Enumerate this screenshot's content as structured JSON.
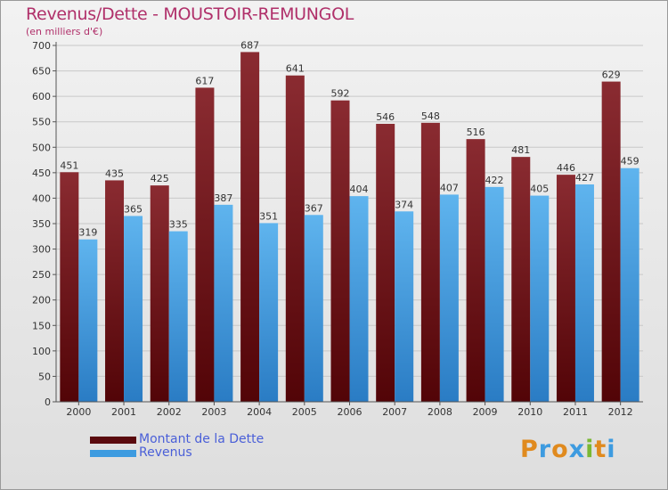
{
  "title": "Revenus/Dette - MOUSTOIR-REMUNGOL",
  "subtitle": "(en milliers d'€)",
  "chart_data": {
    "type": "bar",
    "categories": [
      "2000",
      "2001",
      "2002",
      "2003",
      "2004",
      "2005",
      "2006",
      "2007",
      "2008",
      "2009",
      "2010",
      "2011",
      "2012"
    ],
    "series": [
      {
        "name": "Montant de la Dette",
        "color": "#6e1418",
        "values": [
          451,
          435,
          425,
          617,
          687,
          641,
          592,
          546,
          548,
          516,
          481,
          446,
          629
        ]
      },
      {
        "name": "Revenus",
        "color": "#4aa3e3",
        "values": [
          319,
          365,
          335,
          387,
          351,
          367,
          404,
          374,
          407,
          422,
          405,
          427,
          459
        ]
      }
    ],
    "ylim": [
      0,
      700
    ],
    "yticks": [
      0,
      50,
      100,
      150,
      200,
      250,
      300,
      350,
      400,
      450,
      500,
      550,
      600,
      650,
      700
    ],
    "grid": true,
    "legend_position": "bottom-left"
  },
  "legend": {
    "items": [
      {
        "label": "Montant de la Dette",
        "color": "#5a0a0e"
      },
      {
        "label": "Revenus",
        "color": "#3d9be0"
      }
    ]
  },
  "logo": {
    "letters": [
      "P",
      "r",
      "o",
      "x",
      "i",
      "t",
      "i"
    ],
    "colors": [
      "#e08a1e",
      "#3d9be0",
      "#e08a1e",
      "#3d9be0",
      "#7ab833",
      "#e08a1e",
      "#3d9be0"
    ]
  }
}
